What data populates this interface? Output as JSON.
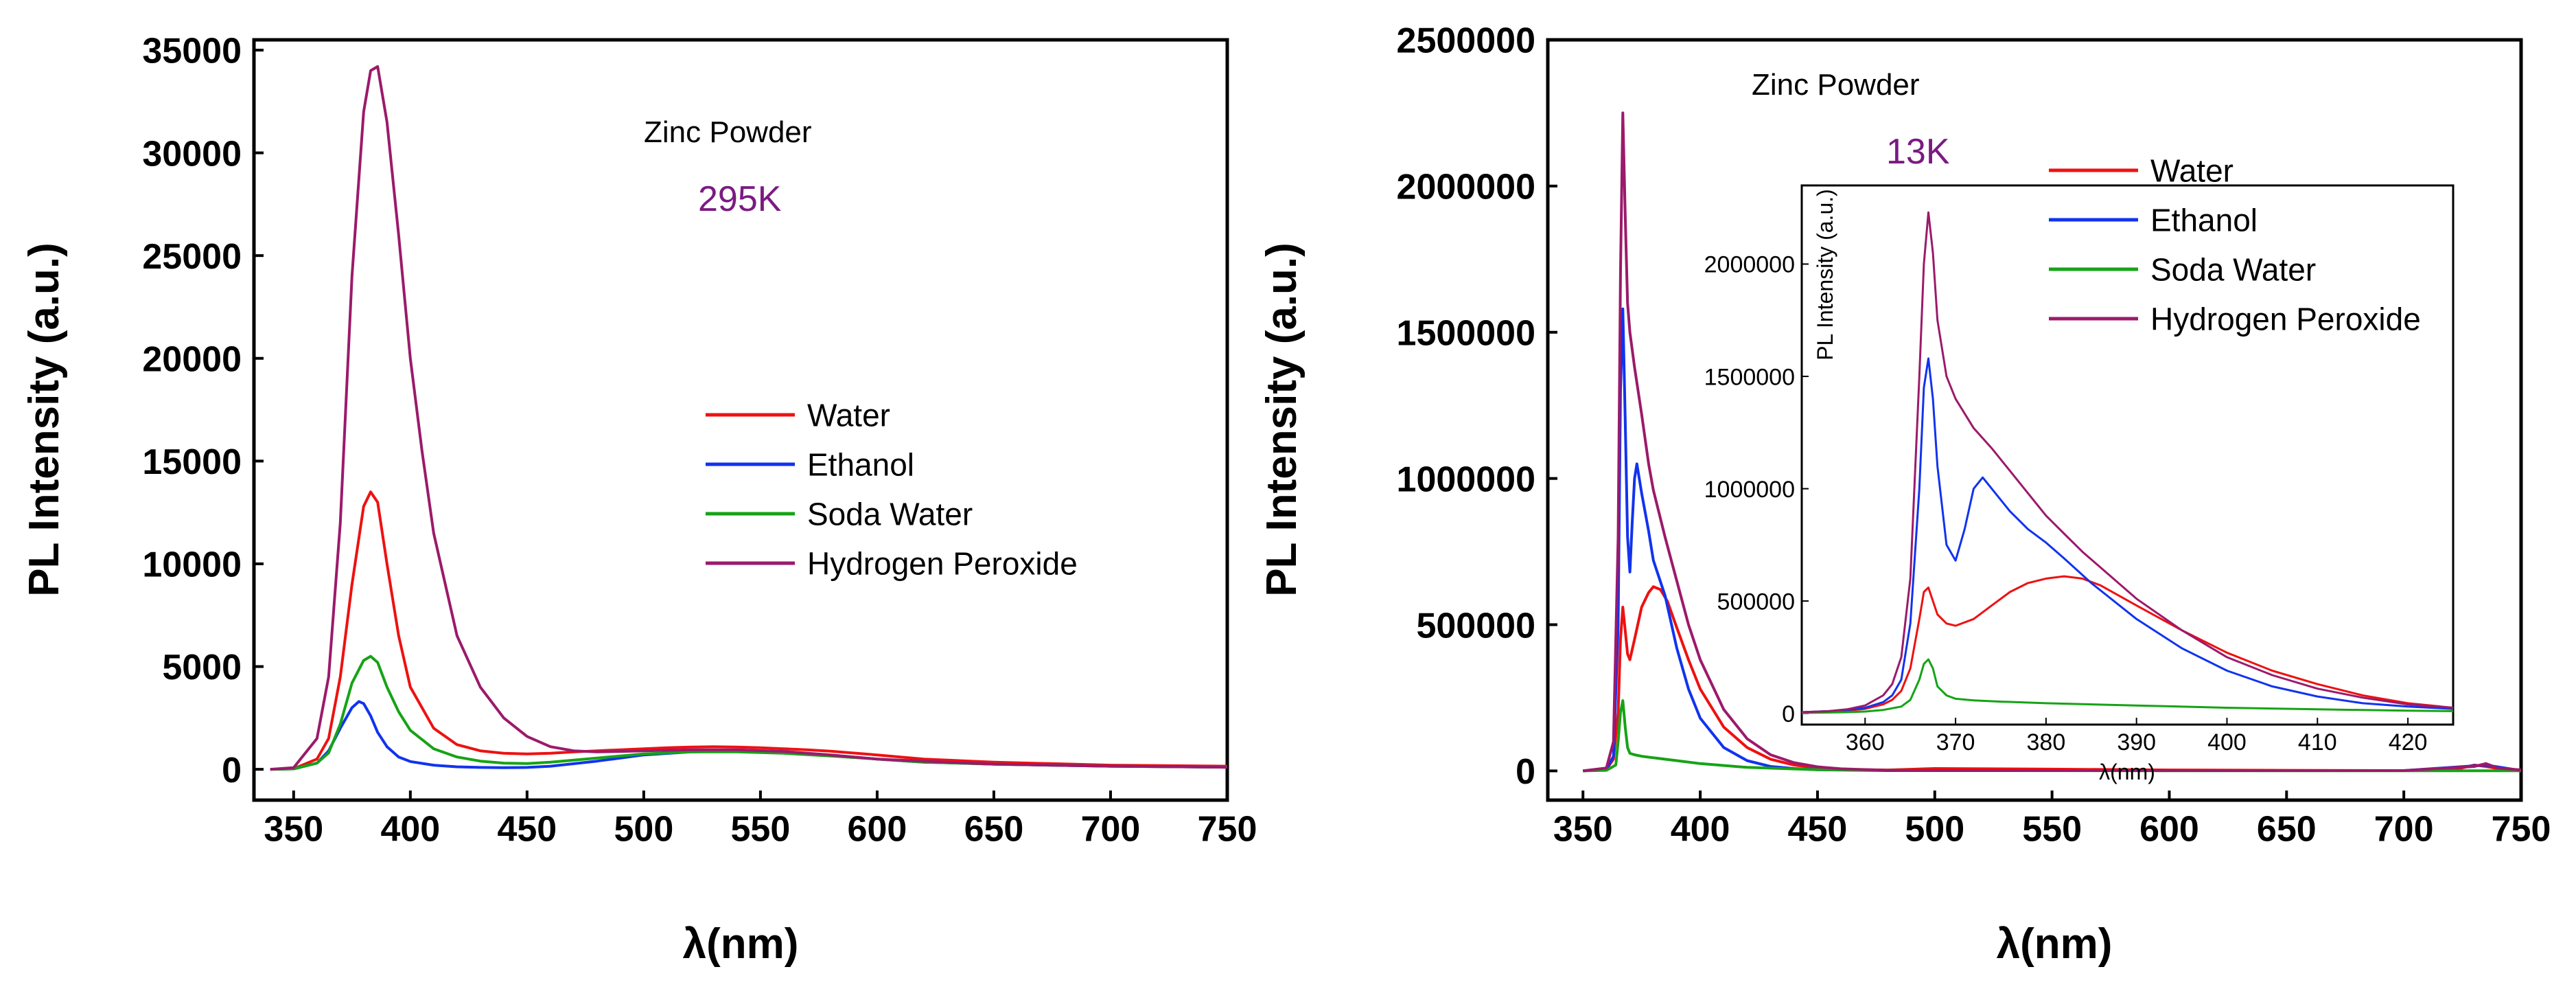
{
  "chart_data": [
    {
      "type": "line",
      "id": "left",
      "xlabel": "λ(nm)",
      "ylabel": "PL Intensity (a.u.)",
      "xlim": [
        333,
        750
      ],
      "ylim": [
        -1500,
        35500
      ],
      "xticks": [
        350,
        400,
        450,
        500,
        550,
        600,
        650,
        700,
        750
      ],
      "yticks": [
        0,
        5000,
        10000,
        15000,
        20000,
        25000,
        30000,
        35000
      ],
      "annotations": [
        {
          "text": "Zinc Powder",
          "color": "#000000"
        },
        {
          "text": "295K",
          "color": "#7b1a82"
        }
      ],
      "legend_position": "center-right",
      "series": [
        {
          "name": "Water",
          "color": "#ee1111",
          "x": [
            340,
            350,
            360,
            365,
            370,
            375,
            380,
            383,
            386,
            390,
            395,
            400,
            410,
            420,
            430,
            440,
            450,
            460,
            470,
            480,
            490,
            500,
            510,
            520,
            530,
            540,
            550,
            560,
            570,
            580,
            600,
            620,
            650,
            700,
            750
          ],
          "y": [
            0,
            30,
            500,
            1500,
            4500,
            9000,
            12800,
            13500,
            13000,
            10000,
            6500,
            4000,
            2000,
            1200,
            900,
            780,
            750,
            780,
            850,
            900,
            950,
            1000,
            1050,
            1080,
            1100,
            1080,
            1050,
            1000,
            950,
            880,
            700,
            500,
            350,
            200,
            150
          ]
        },
        {
          "name": "Ethanol",
          "color": "#1133ee",
          "x": [
            340,
            350,
            360,
            365,
            370,
            375,
            378,
            380,
            383,
            386,
            390,
            395,
            400,
            410,
            420,
            430,
            440,
            450,
            460,
            480,
            500,
            520,
            540,
            560,
            580,
            600,
            620,
            650,
            700,
            750
          ],
          "y": [
            0,
            20,
            300,
            900,
            2000,
            3000,
            3300,
            3200,
            2600,
            1800,
            1100,
            600,
            380,
            200,
            120,
            90,
            80,
            90,
            150,
            400,
            700,
            850,
            870,
            830,
            700,
            500,
            350,
            250,
            150,
            100
          ]
        },
        {
          "name": "Soda Water",
          "color": "#16a316",
          "x": [
            340,
            350,
            360,
            365,
            370,
            375,
            380,
            383,
            386,
            390,
            395,
            400,
            410,
            420,
            430,
            440,
            450,
            460,
            480,
            500,
            520,
            540,
            560,
            580,
            600,
            620,
            650,
            700,
            750
          ],
          "y": [
            0,
            20,
            300,
            800,
            2200,
            4200,
            5300,
            5500,
            5200,
            4000,
            2800,
            1900,
            1000,
            600,
            400,
            300,
            280,
            350,
            550,
            750,
            850,
            850,
            780,
            650,
            500,
            350,
            250,
            150,
            100
          ]
        },
        {
          "name": "Hydrogen Peroxide",
          "color": "#9b1a6a",
          "x": [
            340,
            350,
            360,
            365,
            370,
            375,
            380,
            383,
            386,
            390,
            395,
            400,
            405,
            410,
            420,
            430,
            440,
            450,
            460,
            470,
            480,
            490,
            500,
            520,
            540,
            560,
            580,
            600,
            620,
            650,
            700,
            750
          ],
          "y": [
            0,
            80,
            1500,
            4500,
            12000,
            24000,
            32000,
            34000,
            34200,
            31500,
            26000,
            20000,
            15500,
            11500,
            6500,
            4000,
            2500,
            1600,
            1100,
            900,
            850,
            870,
            900,
            950,
            950,
            870,
            700,
            500,
            400,
            250,
            150,
            100
          ]
        }
      ]
    },
    {
      "type": "line",
      "id": "right",
      "xlabel": "λ(nm)",
      "ylabel": "PL Intensity (a.u.)",
      "xlim": [
        335,
        750
      ],
      "ylim": [
        -100000,
        2500000
      ],
      "xticks": [
        350,
        400,
        450,
        500,
        550,
        600,
        650,
        700,
        750
      ],
      "yticks": [
        0,
        500000,
        1000000,
        1500000,
        2000000,
        2500000
      ],
      "annotations": [
        {
          "text": "Zinc Powder",
          "color": "#000000"
        },
        {
          "text": "13K",
          "color": "#7b1a82"
        }
      ],
      "legend_position": "top-right",
      "series": [
        {
          "name": "Water",
          "color": "#ee1111",
          "x": [
            350,
            360,
            363,
            365,
            366,
            367,
            368,
            369,
            370,
            372,
            375,
            378,
            380,
            383,
            386,
            390,
            395,
            400,
            410,
            420,
            430,
            440,
            450,
            460,
            480,
            500,
            550,
            600,
            650,
            700,
            720,
            730,
            735,
            740,
            750
          ],
          "y": [
            0,
            5000,
            40000,
            200000,
            450000,
            560000,
            480000,
            400000,
            380000,
            450000,
            560000,
            610000,
            630000,
            620000,
            580000,
            490000,
            380000,
            280000,
            150000,
            80000,
            40000,
            20000,
            10000,
            5000,
            3000,
            8000,
            6000,
            3000,
            2000,
            1000,
            1000,
            20000,
            15000,
            8000,
            3000
          ]
        },
        {
          "name": "Ethanol",
          "color": "#1133ee",
          "x": [
            350,
            360,
            363,
            365,
            366,
            367,
            368,
            369,
            370,
            371,
            372,
            373,
            375,
            378,
            380,
            385,
            390,
            395,
            400,
            410,
            420,
            430,
            440,
            450,
            480,
            500,
            550,
            600,
            650,
            700,
            735,
            750
          ],
          "y": [
            0,
            5000,
            50000,
            500000,
            1300000,
            1580000,
            1200000,
            800000,
            680000,
            850000,
            1000000,
            1050000,
            950000,
            820000,
            720000,
            600000,
            420000,
            280000,
            180000,
            80000,
            35000,
            15000,
            8000,
            4000,
            1000,
            1000,
            1000,
            1000,
            1000,
            1000,
            20000,
            1000
          ]
        },
        {
          "name": "Soda Water",
          "color": "#16a316",
          "x": [
            350,
            360,
            364,
            365,
            366,
            367,
            368,
            369,
            370,
            372,
            375,
            380,
            390,
            400,
            420,
            450,
            500,
            600,
            700,
            750
          ],
          "y": [
            0,
            2000,
            20000,
            100000,
            200000,
            240000,
            150000,
            80000,
            60000,
            55000,
            50000,
            45000,
            35000,
            25000,
            12000,
            4000,
            1000,
            500,
            300,
            200
          ]
        },
        {
          "name": "Hydrogen Peroxide",
          "color": "#9b1a6a",
          "x": [
            350,
            360,
            363,
            365,
            366,
            367,
            368,
            369,
            370,
            372,
            375,
            378,
            380,
            385,
            390,
            395,
            400,
            410,
            420,
            430,
            440,
            450,
            460,
            480,
            500,
            550,
            600,
            650,
            700,
            730,
            735,
            740,
            750
          ],
          "y": [
            0,
            10000,
            100000,
            800000,
            1700000,
            2250000,
            1900000,
            1600000,
            1500000,
            1380000,
            1220000,
            1050000,
            960000,
            800000,
            650000,
            500000,
            380000,
            210000,
            110000,
            55000,
            28000,
            14000,
            7000,
            2000,
            1000,
            1000,
            1000,
            1000,
            1000,
            15000,
            25000,
            10000,
            3000
          ]
        }
      ],
      "inset": {
        "xlabel": "λ(nm)",
        "ylabel": "PL Intensity (a.u.)",
        "xlim": [
          353,
          425
        ],
        "ylim": [
          -50000,
          2350000
        ],
        "xticks": [
          360,
          370,
          380,
          390,
          400,
          410,
          420
        ],
        "yticks": [
          0,
          500000,
          1000000,
          1500000,
          2000000
        ],
        "series": [
          {
            "name": "Water",
            "color": "#ee1111",
            "x": [
              353,
              356,
              358,
              360,
              362,
              363,
              364,
              365,
              366,
              366.5,
              367,
              367.5,
              368,
              369,
              370,
              372,
              374,
              376,
              378,
              380,
              382,
              384,
              386,
              390,
              395,
              400,
              405,
              410,
              415,
              420,
              425
            ],
            "y": [
              5000,
              8000,
              12000,
              20000,
              40000,
              60000,
              100000,
              200000,
              420000,
              540000,
              560000,
              500000,
              440000,
              400000,
              390000,
              420000,
              480000,
              540000,
              580000,
              600000,
              610000,
              600000,
              570000,
              480000,
              370000,
              270000,
              190000,
              130000,
              80000,
              45000,
              25000
            ]
          },
          {
            "name": "Ethanol",
            "color": "#1133ee",
            "x": [
              353,
              356,
              358,
              360,
              362,
              363,
              364,
              365,
              366,
              366.5,
              367,
              367.5,
              368,
              369,
              370,
              371,
              372,
              373,
              374,
              376,
              378,
              380,
              382,
              385,
              390,
              395,
              400,
              405,
              410,
              415,
              420,
              425
            ],
            "y": [
              5000,
              10000,
              15000,
              25000,
              50000,
              80000,
              150000,
              400000,
              1000000,
              1450000,
              1580000,
              1400000,
              1100000,
              750000,
              680000,
              820000,
              1000000,
              1050000,
              1000000,
              900000,
              820000,
              760000,
              690000,
              580000,
              420000,
              290000,
              190000,
              120000,
              75000,
              45000,
              30000,
              20000
            ]
          },
          {
            "name": "Soda Water",
            "color": "#16a316",
            "x": [
              353,
              358,
              360,
              362,
              364,
              365,
              366,
              366.5,
              367,
              367.5,
              368,
              369,
              370,
              372,
              375,
              380,
              390,
              400,
              410,
              420,
              425
            ],
            "y": [
              2000,
              5000,
              8000,
              15000,
              30000,
              60000,
              150000,
              220000,
              240000,
              200000,
              120000,
              80000,
              65000,
              58000,
              52000,
              45000,
              35000,
              25000,
              18000,
              12000,
              10000
            ]
          },
          {
            "name": "Hydrogen Peroxide",
            "color": "#9b1a6a",
            "x": [
              353,
              356,
              358,
              360,
              362,
              363,
              364,
              365,
              366,
              366.5,
              367,
              367.5,
              368,
              369,
              370,
              372,
              374,
              376,
              378,
              380,
              382,
              384,
              386,
              390,
              395,
              400,
              405,
              410,
              415,
              420,
              425
            ],
            "y": [
              5000,
              10000,
              18000,
              35000,
              80000,
              130000,
              250000,
              600000,
              1500000,
              2000000,
              2230000,
              2050000,
              1750000,
              1500000,
              1400000,
              1270000,
              1180000,
              1080000,
              980000,
              880000,
              800000,
              720000,
              650000,
              510000,
              370000,
              250000,
              170000,
              110000,
              70000,
              40000,
              25000
            ]
          }
        ]
      }
    }
  ]
}
